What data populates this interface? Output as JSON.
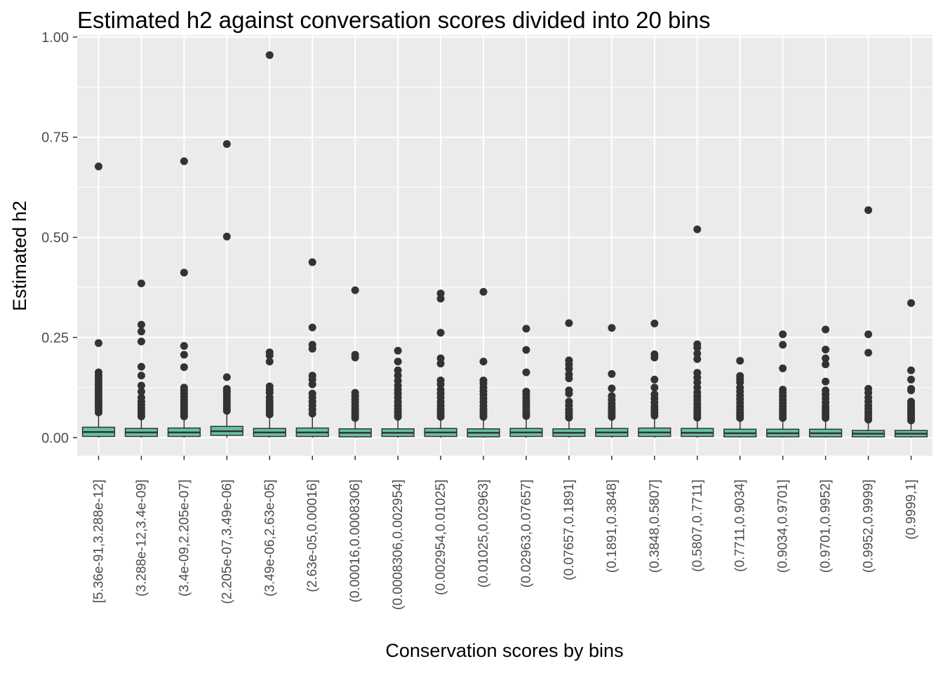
{
  "chart_data": {
    "type": "box",
    "title": "Estimated h2 against conversation scores divided into 20 bins",
    "xlabel": "Conservation scores by bins",
    "ylabel": "Estimated h2",
    "ylim": [
      -0.045,
      1.005
    ],
    "yticks": [
      0.0,
      0.25,
      0.5,
      0.75,
      1.0
    ],
    "ytick_labels": [
      "0.00",
      "0.25",
      "0.50",
      "0.75",
      "1.00"
    ],
    "grid": true,
    "colors": {
      "panel": "#ebebeb",
      "grid": "#ffffff",
      "box_fill": "#66c2a5",
      "outline": "#333333",
      "text": "#4d4d4d"
    },
    "categories": [
      "[5.36e-91,3.288e-12]",
      "(3.288e-12,3.4e-09]",
      "(3.4e-09,2.205e-07]",
      "(2.205e-07,3.49e-06]",
      "(3.49e-06,2.63e-05]",
      "(2.63e-05,0.00016]",
      "(0.00016,0.0008306]",
      "(0.0008306,0.002954]",
      "(0.002954,0.01025]",
      "(0.01025,0.02963]",
      "(0.02963,0.07657]",
      "(0.07657,0.1891]",
      "(0.1891,0.3848]",
      "(0.3848,0.5807]",
      "(0.5807,0.7711]",
      "(0.7711,0.9034]",
      "(0.9034,0.9701]",
      "(0.9701,0.9952]",
      "(0.9952,0.9999]",
      "(0.9999,1]"
    ],
    "boxes": [
      {
        "q1": 0.003,
        "median": 0.014,
        "q3": 0.026,
        "whisker_low": 0.0,
        "whisker_high": 0.06,
        "outliers": [
          0.677,
          0.236,
          0.163,
          0.155,
          0.148,
          0.14,
          0.133,
          0.125,
          0.118,
          0.11,
          0.103,
          0.096,
          0.09,
          0.083,
          0.077,
          0.07,
          0.063
        ]
      },
      {
        "q1": 0.003,
        "median": 0.013,
        "q3": 0.023,
        "whisker_low": 0.0,
        "whisker_high": 0.05,
        "outliers": [
          0.385,
          0.282,
          0.265,
          0.24,
          0.177,
          0.155,
          0.13,
          0.115,
          0.1,
          0.09,
          0.082,
          0.074,
          0.067,
          0.06,
          0.053
        ]
      },
      {
        "q1": 0.003,
        "median": 0.013,
        "q3": 0.024,
        "whisker_low": 0.0,
        "whisker_high": 0.05,
        "outliers": [
          0.69,
          0.412,
          0.229,
          0.207,
          0.176,
          0.125,
          0.118,
          0.11,
          0.102,
          0.094,
          0.087,
          0.08,
          0.073,
          0.066,
          0.059,
          0.053
        ]
      },
      {
        "q1": 0.006,
        "median": 0.016,
        "q3": 0.028,
        "whisker_low": 0.0,
        "whisker_high": 0.064,
        "outliers": [
          0.733,
          0.502,
          0.151,
          0.122,
          0.115,
          0.108,
          0.1,
          0.093,
          0.086,
          0.079,
          0.072,
          0.067
        ]
      },
      {
        "q1": 0.003,
        "median": 0.013,
        "q3": 0.023,
        "whisker_low": 0.0,
        "whisker_high": 0.055,
        "outliers": [
          0.955,
          0.213,
          0.205,
          0.19,
          0.128,
          0.12,
          0.112,
          0.1,
          0.092,
          0.084,
          0.077,
          0.07,
          0.063,
          0.058
        ]
      },
      {
        "q1": 0.003,
        "median": 0.013,
        "q3": 0.024,
        "whisker_low": 0.0,
        "whisker_high": 0.053,
        "outliers": [
          0.438,
          0.275,
          0.232,
          0.222,
          0.155,
          0.145,
          0.133,
          0.11,
          0.1,
          0.09,
          0.08,
          0.07,
          0.06
        ]
      },
      {
        "q1": 0.002,
        "median": 0.012,
        "q3": 0.022,
        "whisker_low": 0.0,
        "whisker_high": 0.045,
        "outliers": [
          0.368,
          0.207,
          0.2,
          0.112,
          0.104,
          0.096,
          0.088,
          0.08,
          0.073,
          0.066,
          0.06,
          0.054,
          0.049
        ]
      },
      {
        "q1": 0.003,
        "median": 0.012,
        "q3": 0.022,
        "whisker_low": 0.0,
        "whisker_high": 0.05,
        "outliers": [
          0.217,
          0.19,
          0.168,
          0.155,
          0.142,
          0.13,
          0.12,
          0.11,
          0.1,
          0.09,
          0.08,
          0.072,
          0.064,
          0.057,
          0.052
        ]
      },
      {
        "q1": 0.003,
        "median": 0.013,
        "q3": 0.023,
        "whisker_low": 0.0,
        "whisker_high": 0.05,
        "outliers": [
          0.36,
          0.347,
          0.262,
          0.198,
          0.185,
          0.143,
          0.133,
          0.12,
          0.11,
          0.1,
          0.09,
          0.08,
          0.072,
          0.064,
          0.057,
          0.052
        ]
      },
      {
        "q1": 0.002,
        "median": 0.012,
        "q3": 0.022,
        "whisker_low": 0.0,
        "whisker_high": 0.048,
        "outliers": [
          0.364,
          0.19,
          0.143,
          0.135,
          0.125,
          0.116,
          0.107,
          0.098,
          0.089,
          0.08,
          0.072,
          0.065,
          0.058,
          0.052
        ]
      },
      {
        "q1": 0.003,
        "median": 0.013,
        "q3": 0.023,
        "whisker_low": 0.0,
        "whisker_high": 0.05,
        "outliers": [
          0.272,
          0.219,
          0.163,
          0.115,
          0.107,
          0.099,
          0.091,
          0.083,
          0.075,
          0.067,
          0.06,
          0.054
        ]
      },
      {
        "q1": 0.003,
        "median": 0.012,
        "q3": 0.022,
        "whisker_low": 0.0,
        "whisker_high": 0.045,
        "outliers": [
          0.286,
          0.193,
          0.183,
          0.172,
          0.158,
          0.148,
          0.118,
          0.11,
          0.09,
          0.08,
          0.07,
          0.062,
          0.055,
          0.05
        ]
      },
      {
        "q1": 0.003,
        "median": 0.013,
        "q3": 0.023,
        "whisker_low": 0.0,
        "whisker_high": 0.048,
        "outliers": [
          0.274,
          0.159,
          0.123,
          0.104,
          0.094,
          0.085,
          0.077,
          0.07,
          0.063,
          0.056,
          0.052
        ]
      },
      {
        "q1": 0.003,
        "median": 0.013,
        "q3": 0.024,
        "whisker_low": 0.0,
        "whisker_high": 0.05,
        "outliers": [
          0.285,
          0.208,
          0.2,
          0.145,
          0.125,
          0.108,
          0.098,
          0.088,
          0.078,
          0.07,
          0.062,
          0.055
        ]
      },
      {
        "q1": 0.003,
        "median": 0.012,
        "q3": 0.023,
        "whisker_low": 0.0,
        "whisker_high": 0.05,
        "outliers": [
          0.52,
          0.233,
          0.225,
          0.21,
          0.196,
          0.162,
          0.15,
          0.138,
          0.125,
          0.113,
          0.103,
          0.094,
          0.085,
          0.077,
          0.069,
          0.062,
          0.056,
          0.05
        ]
      },
      {
        "q1": 0.002,
        "median": 0.011,
        "q3": 0.021,
        "whisker_low": 0.0,
        "whisker_high": 0.045,
        "outliers": [
          0.192,
          0.154,
          0.146,
          0.138,
          0.125,
          0.115,
          0.105,
          0.096,
          0.087,
          0.078,
          0.07,
          0.062,
          0.055,
          0.049
        ]
      },
      {
        "q1": 0.002,
        "median": 0.011,
        "q3": 0.021,
        "whisker_low": 0.0,
        "whisker_high": 0.045,
        "outliers": [
          0.258,
          0.232,
          0.173,
          0.12,
          0.112,
          0.103,
          0.094,
          0.086,
          0.078,
          0.07,
          0.062,
          0.055,
          0.049
        ]
      },
      {
        "q1": 0.002,
        "median": 0.011,
        "q3": 0.021,
        "whisker_low": 0.0,
        "whisker_high": 0.045,
        "outliers": [
          0.27,
          0.22,
          0.198,
          0.183,
          0.14,
          0.118,
          0.108,
          0.098,
          0.088,
          0.078,
          0.07,
          0.062,
          0.055,
          0.049
        ]
      },
      {
        "q1": 0.002,
        "median": 0.01,
        "q3": 0.018,
        "whisker_low": 0.0,
        "whisker_high": 0.04,
        "outliers": [
          0.568,
          0.258,
          0.212,
          0.122,
          0.112,
          0.1,
          0.09,
          0.08,
          0.072,
          0.064,
          0.057,
          0.05,
          0.045
        ]
      },
      {
        "q1": 0.002,
        "median": 0.01,
        "q3": 0.018,
        "whisker_low": 0.0,
        "whisker_high": 0.04,
        "outliers": [
          0.336,
          0.168,
          0.145,
          0.122,
          0.118,
          0.09,
          0.084,
          0.078,
          0.072,
          0.066,
          0.06,
          0.054,
          0.048,
          0.043
        ]
      }
    ]
  }
}
